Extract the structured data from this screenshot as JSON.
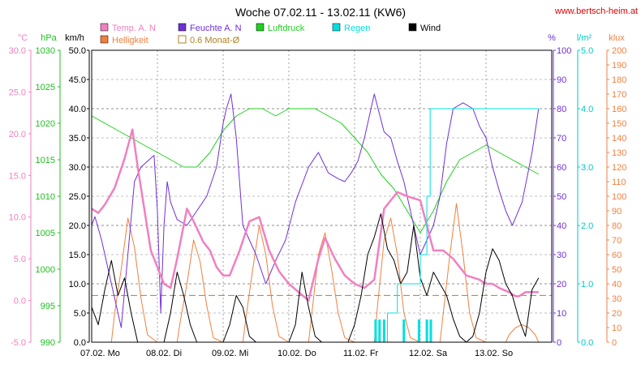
{
  "header": {
    "title": "Woche 07.02.11 - 13.02.11 (KW6)",
    "site": "www.bertsch-heim.at"
  },
  "legend": [
    {
      "label": "Temp. A. N",
      "color": "#f080c0"
    },
    {
      "label": "Feuchte A. N",
      "color": "#7030d8"
    },
    {
      "label": "Luftdruck",
      "color": "#20d020"
    },
    {
      "label": "Regen",
      "color": "#00e0e0"
    },
    {
      "label": "Wind",
      "color": "#000000"
    },
    {
      "label": "Helligkeit",
      "color": "#f08040"
    },
    {
      "label": "0.6 Monat-Ø",
      "color": "#b08020"
    }
  ],
  "chart_data": {
    "type": "line",
    "title": "Woche 07.02.11 - 13.02.11 (KW6)",
    "x_labels": [
      "07.02. Mo",
      "08.02. Di",
      "09.02. Mi",
      "10.02. Do",
      "11.02. Fr",
      "12.02. Sa",
      "13.02. So"
    ],
    "x_range_days": [
      0,
      7
    ],
    "grid": true,
    "axes": {
      "temp": {
        "unit": "°C",
        "range": [
          -5,
          30
        ],
        "ticks": [
          "-5.0",
          "0.0",
          "5.0",
          "10.0",
          "15.0",
          "20.0",
          "25.0",
          "30.0"
        ],
        "color": "#f080c0"
      },
      "pressure": {
        "unit": "hPa",
        "range": [
          990,
          1030
        ],
        "ticks": [
          "990",
          "995",
          "1000",
          "1005",
          "1010",
          "1015",
          "1020",
          "1025",
          "1030"
        ],
        "color": "#20c020"
      },
      "wind": {
        "unit": "km/h",
        "range": [
          0,
          50
        ],
        "ticks": [
          "0.0",
          "5.0",
          "10.0",
          "15.0",
          "20.0",
          "25.0",
          "30.0",
          "35.0",
          "40.0",
          "45.0",
          "50.0"
        ],
        "color": "#000000"
      },
      "humidity": {
        "unit": "%",
        "range": [
          0,
          100
        ],
        "ticks": [
          "0",
          "10",
          "20",
          "30",
          "40",
          "50",
          "60",
          "70",
          "80",
          "90",
          "100"
        ],
        "color": "#7030d8"
      },
      "rain": {
        "unit": "l/m²",
        "range": [
          0,
          5
        ],
        "ticks": [
          "0.0",
          "1.0",
          "2.0",
          "3.0",
          "4.0",
          "5.0"
        ],
        "color": "#00c8c8"
      },
      "light": {
        "unit": "klux",
        "range": [
          0,
          200
        ],
        "ticks": [
          "0",
          "10",
          "20",
          "30",
          "40",
          "50",
          "60",
          "70",
          "80",
          "90",
          "100",
          "110",
          "120",
          "130",
          "140",
          "150",
          "160",
          "170",
          "180",
          "190",
          "200"
        ],
        "color": "#f08040"
      }
    },
    "reference_lines": [
      {
        "name": "0.6 Monat-Ø",
        "axis": "temp",
        "value": 0.6,
        "color": "#b08020",
        "style": "dashed"
      }
    ],
    "series": [
      {
        "name": "Temp. A. N",
        "axis": "temp",
        "color": "#f080c0",
        "x": [
          0,
          0.1,
          0.2,
          0.35,
          0.5,
          0.62,
          0.7,
          0.8,
          0.9,
          1.0,
          1.1,
          1.2,
          1.3,
          1.45,
          1.55,
          1.7,
          1.8,
          1.9,
          2.0,
          2.1,
          2.25,
          2.4,
          2.55,
          2.7,
          2.85,
          3.0,
          3.15,
          3.3,
          3.45,
          3.55,
          3.7,
          3.85,
          4.0,
          4.15,
          4.3,
          4.45,
          4.55,
          4.65,
          4.8,
          5.0,
          5.1,
          5.2,
          5.35,
          5.5,
          5.7,
          5.9,
          6.0,
          6.1,
          6.2,
          6.35,
          6.45,
          6.5,
          6.6,
          6.7,
          6.8
        ],
        "y": [
          11,
          10.5,
          11.5,
          13.5,
          17,
          20.5,
          16,
          11,
          6,
          4,
          2,
          1.5,
          5,
          11,
          9.5,
          7,
          6,
          4,
          3,
          3,
          6,
          9.5,
          10,
          6,
          3.5,
          2,
          1,
          0,
          5,
          7.5,
          5,
          3,
          2,
          1.5,
          2.5,
          11,
          12,
          13,
          12.5,
          12,
          9,
          6,
          6,
          5,
          3,
          2.5,
          2,
          2,
          1.5,
          1,
          0.5,
          0.5,
          1,
          1,
          1
        ]
      },
      {
        "name": "Feuchte A. N",
        "axis": "humidity",
        "color": "#7030d8",
        "x": [
          0,
          0.05,
          0.15,
          0.3,
          0.45,
          0.55,
          0.65,
          0.75,
          0.85,
          0.95,
          1.0,
          1.05,
          1.1,
          1.15,
          1.2,
          1.3,
          1.45,
          1.6,
          1.75,
          1.9,
          2.0,
          2.05,
          2.12,
          2.2,
          2.3,
          2.5,
          2.65,
          2.8,
          2.95,
          3.1,
          3.3,
          3.45,
          3.6,
          3.75,
          3.85,
          3.95,
          4.05,
          4.15,
          4.3,
          4.45,
          4.55,
          4.65,
          4.75,
          4.85,
          5.0,
          5.1,
          5.2,
          5.3,
          5.4,
          5.5,
          5.65,
          5.8,
          5.9,
          6.0,
          6.1,
          6.2,
          6.3,
          6.4,
          6.55,
          6.7,
          6.8
        ],
        "y": [
          40,
          43,
          35,
          20,
          5,
          30,
          55,
          60,
          62,
          64,
          45,
          10,
          40,
          55,
          48,
          42,
          40,
          45,
          50,
          60,
          75,
          80,
          85,
          70,
          40,
          30,
          20,
          28,
          35,
          48,
          60,
          65,
          58,
          56,
          55,
          58,
          62,
          70,
          85,
          72,
          70,
          62,
          55,
          45,
          30,
          35,
          40,
          50,
          68,
          80,
          82,
          80,
          74,
          70,
          60,
          52,
          45,
          40,
          48,
          65,
          80
        ]
      },
      {
        "name": "Luftdruck",
        "axis": "pressure",
        "color": "#20d020",
        "x": [
          0,
          0.2,
          0.4,
          0.6,
          0.8,
          1.0,
          1.2,
          1.4,
          1.6,
          1.8,
          2.0,
          2.2,
          2.4,
          2.6,
          2.8,
          3.0,
          3.2,
          3.4,
          3.6,
          3.8,
          4.0,
          4.2,
          4.4,
          4.6,
          4.8,
          5.0,
          5.2,
          5.4,
          5.6,
          5.8,
          6.0,
          6.2,
          6.4,
          6.6,
          6.8
        ],
        "y": [
          1021,
          1020,
          1019,
          1018,
          1017,
          1016,
          1015,
          1014,
          1014,
          1016,
          1019,
          1021,
          1022,
          1022,
          1021,
          1022,
          1022,
          1022,
          1021,
          1020,
          1018,
          1016,
          1013,
          1011,
          1008,
          1005,
          1008,
          1012,
          1015,
          1016,
          1017,
          1016,
          1015,
          1014,
          1013
        ]
      },
      {
        "name": "Regen",
        "axis": "rain",
        "color": "#00e0e0",
        "x": [
          0,
          4.35,
          4.5,
          4.65,
          5.0,
          5.1,
          5.15,
          5.3,
          6.8
        ],
        "y": [
          0,
          0,
          0.5,
          1.0,
          1.5,
          2.5,
          4.0,
          4.0,
          4.0
        ]
      },
      {
        "name": "Wind",
        "axis": "wind",
        "color": "#000000",
        "x": [
          0,
          0.1,
          0.2,
          0.3,
          0.4,
          0.5,
          0.6,
          0.7,
          0.8,
          0.9,
          1.0,
          1.1,
          1.2,
          1.3,
          1.4,
          1.5,
          1.6,
          1.7,
          1.8,
          1.9,
          2.0,
          2.1,
          2.2,
          2.3,
          2.4,
          2.5,
          2.6,
          2.7,
          2.8,
          2.9,
          3.0,
          3.1,
          3.2,
          3.3,
          3.4,
          3.5,
          3.6,
          3.7,
          3.8,
          3.9,
          4.0,
          4.1,
          4.2,
          4.3,
          4.4,
          4.5,
          4.6,
          4.7,
          4.8,
          4.9,
          5.0,
          5.1,
          5.2,
          5.3,
          5.4,
          5.5,
          5.6,
          5.7,
          5.8,
          5.9,
          6.0,
          6.1,
          6.2,
          6.3,
          6.4,
          6.5,
          6.6,
          6.7,
          6.8
        ],
        "y": [
          6,
          3,
          9,
          14,
          8,
          11,
          5,
          0,
          0,
          0,
          0,
          0,
          5,
          12,
          8,
          3,
          0,
          0,
          0,
          0,
          0,
          3,
          8,
          6,
          1,
          0,
          0,
          0,
          0,
          0,
          0,
          3,
          12,
          6,
          1,
          0,
          0,
          0,
          0,
          0,
          3,
          8,
          15,
          18,
          22,
          16,
          14,
          10,
          12,
          20,
          11,
          8,
          12,
          10,
          8,
          4,
          1,
          0,
          1,
          5,
          12,
          16,
          14,
          10,
          8,
          4,
          1,
          9,
          11
        ]
      },
      {
        "name": "Helligkeit",
        "axis": "light",
        "color": "#f08040",
        "x": [
          0,
          0.3,
          0.35,
          0.45,
          0.55,
          0.65,
          0.75,
          0.85,
          1.0,
          1.3,
          1.35,
          1.45,
          1.55,
          1.65,
          1.75,
          1.85,
          2.0,
          2.3,
          2.35,
          2.45,
          2.55,
          2.65,
          2.75,
          2.85,
          3.0,
          3.3,
          3.35,
          3.45,
          3.55,
          3.65,
          3.75,
          3.85,
          4.0,
          4.3,
          4.35,
          4.45,
          4.55,
          4.65,
          4.75,
          4.85,
          5.0,
          5.3,
          5.35,
          5.45,
          5.55,
          5.65,
          5.75,
          5.85,
          6.0,
          6.3,
          6.35,
          6.45,
          6.55,
          6.65,
          6.75,
          6.8
        ],
        "y": [
          0,
          0,
          20,
          50,
          85,
          65,
          30,
          5,
          0,
          0,
          15,
          40,
          70,
          55,
          25,
          3,
          0,
          0,
          18,
          50,
          80,
          60,
          25,
          4,
          0,
          0,
          20,
          60,
          75,
          50,
          20,
          3,
          0,
          0,
          25,
          70,
          85,
          60,
          20,
          3,
          0,
          0,
          20,
          60,
          95,
          60,
          20,
          3,
          0,
          0,
          5,
          10,
          12,
          10,
          5,
          0
        ]
      }
    ]
  }
}
